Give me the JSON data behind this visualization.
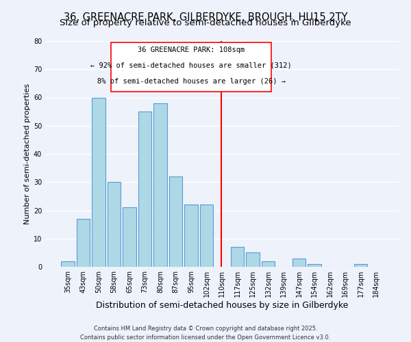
{
  "title": "36, GREENACRE PARK, GILBERDYKE, BROUGH, HU15 2TY",
  "subtitle": "Size of property relative to semi-detached houses in Gilberdyke",
  "xlabel": "Distribution of semi-detached houses by size in Gilberdyke",
  "ylabel": "Number of semi-detached properties",
  "bar_labels": [
    "35sqm",
    "43sqm",
    "50sqm",
    "58sqm",
    "65sqm",
    "73sqm",
    "80sqm",
    "87sqm",
    "95sqm",
    "102sqm",
    "110sqm",
    "117sqm",
    "125sqm",
    "132sqm",
    "139sqm",
    "147sqm",
    "154sqm",
    "162sqm",
    "169sqm",
    "177sqm",
    "184sqm"
  ],
  "bar_heights": [
    2,
    17,
    60,
    30,
    21,
    55,
    58,
    32,
    22,
    22,
    0,
    7,
    5,
    2,
    0,
    3,
    1,
    0,
    0,
    1,
    0
  ],
  "bar_color": "#add8e6",
  "bar_edge_color": "#5b9bd5",
  "vline_x_index": 10,
  "vline_color": "red",
  "ylim": [
    0,
    80
  ],
  "yticks": [
    0,
    10,
    20,
    30,
    40,
    50,
    60,
    70,
    80
  ],
  "annotation_title": "36 GREENACRE PARK: 108sqm",
  "annotation_line1": "← 92% of semi-detached houses are smaller (312)",
  "annotation_line2": "8% of semi-detached houses are larger (26) →",
  "footer1": "Contains HM Land Registry data © Crown copyright and database right 2025.",
  "footer2": "Contains public sector information licensed under the Open Government Licence v3.0.",
  "background_color": "#eef2fb",
  "grid_color": "#ffffff",
  "title_fontsize": 10.5,
  "subtitle_fontsize": 9.5,
  "xlabel_fontsize": 9,
  "ylabel_fontsize": 8,
  "tick_fontsize": 7,
  "annotation_fontsize": 7.5,
  "footer_fontsize": 6
}
